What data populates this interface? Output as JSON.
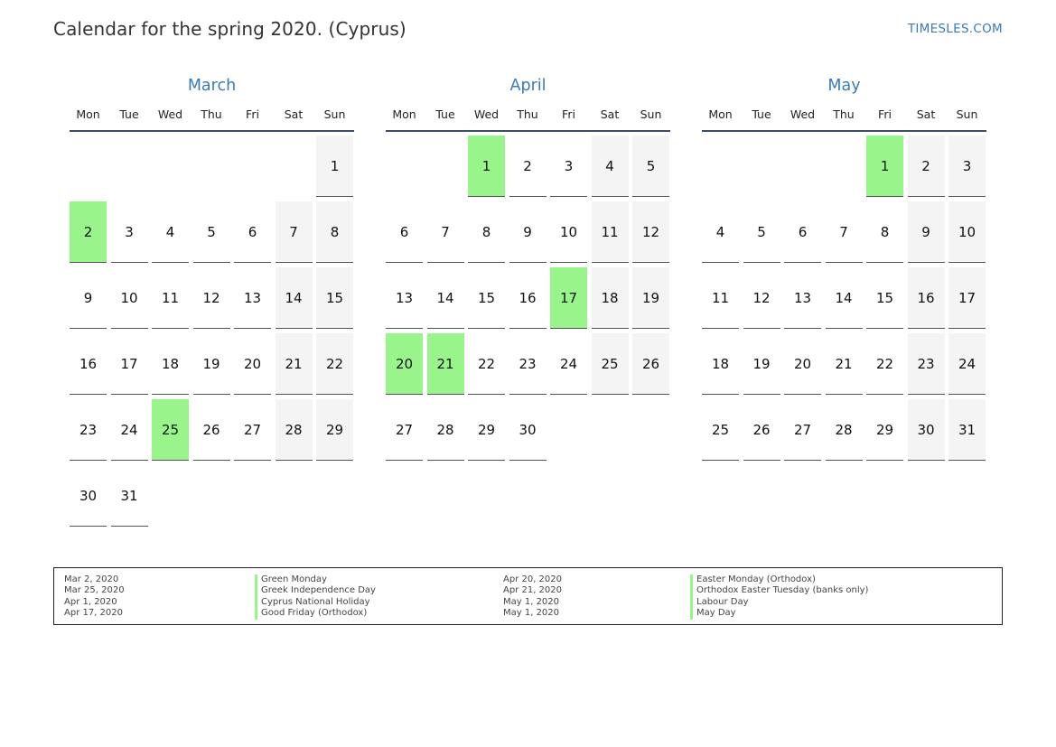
{
  "header": {
    "title": "Calendar for the spring 2020. (Cyprus)",
    "site": "TIMESLES.COM"
  },
  "weekdays": [
    "Mon",
    "Tue",
    "Wed",
    "Thu",
    "Fri",
    "Sat",
    "Sun"
  ],
  "months": [
    {
      "name": "March",
      "lead_blanks": 6,
      "days": 31,
      "holidays": [
        2,
        25
      ]
    },
    {
      "name": "April",
      "lead_blanks": 2,
      "days": 30,
      "holidays": [
        1,
        17,
        20,
        21
      ]
    },
    {
      "name": "May",
      "lead_blanks": 4,
      "days": 31,
      "holidays": [
        1
      ]
    }
  ],
  "legend": [
    {
      "date": "Mar 2, 2020",
      "name": "Green Monday"
    },
    {
      "date": "Mar 25, 2020",
      "name": "Greek Independence Day"
    },
    {
      "date": "Apr 1, 2020",
      "name": "Cyprus National Holiday"
    },
    {
      "date": "Apr 17, 2020",
      "name": "Good Friday (Orthodox)"
    },
    {
      "date": "Apr 20, 2020",
      "name": "Easter Monday (Orthodox)"
    },
    {
      "date": "Apr 21, 2020",
      "name": "Orthodox Easter Tuesday (banks only)"
    },
    {
      "date": "May 1, 2020",
      "name": "Labour Day"
    },
    {
      "date": "May 1, 2020",
      "name": "May Day"
    }
  ],
  "colors": {
    "holiday": "#99f58b",
    "weekend": "#f4f4f4",
    "accent": "#3a7ab8"
  }
}
